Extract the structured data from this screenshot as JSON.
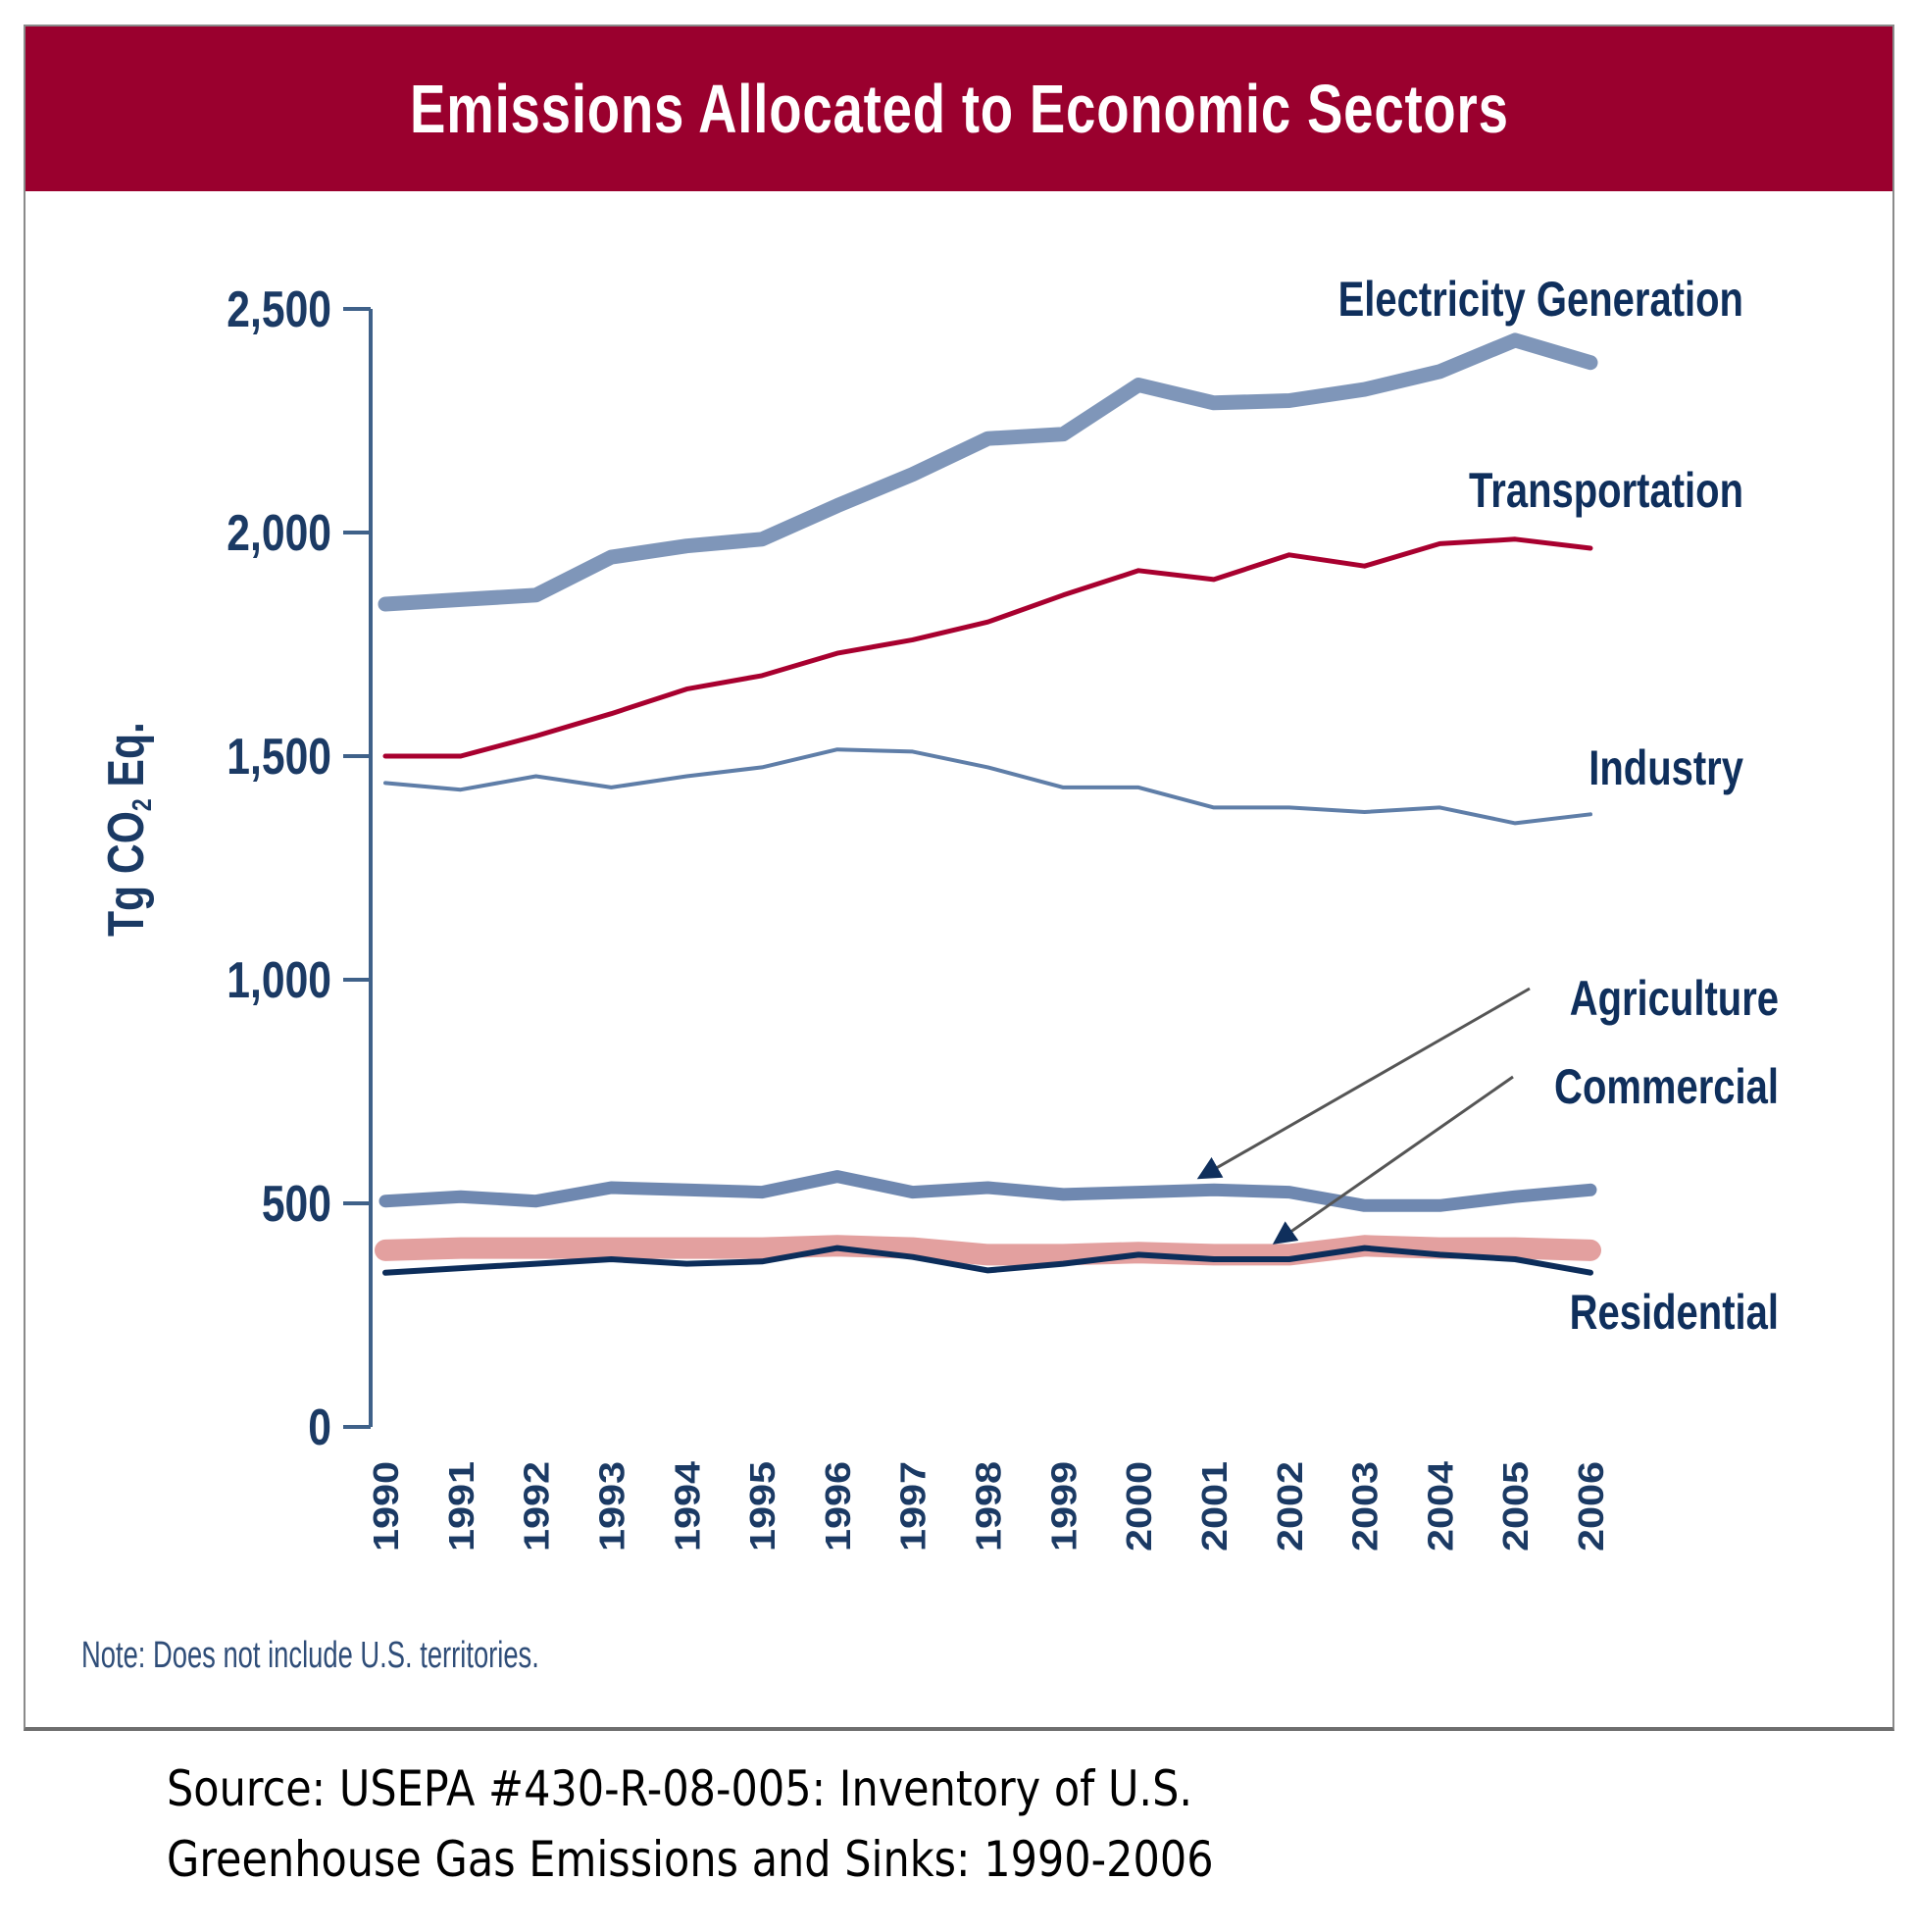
{
  "chart_data": {
    "type": "line",
    "title": "Emissions Allocated to Economic Sectors",
    "xlabel": "",
    "ylabel": "Tg CO2 Eq.",
    "ylabel_parts": {
      "main": "Tg CO",
      "sub": "2",
      "tail": " Eq."
    },
    "ylim": [
      0,
      2500
    ],
    "yticks": [
      0,
      500,
      1000,
      1500,
      2000,
      2500
    ],
    "ytick_labels": [
      "0",
      "500",
      "1,000",
      "1,500",
      "2,000",
      "2,500"
    ],
    "x": [
      1990,
      1991,
      1992,
      1993,
      1994,
      1995,
      1996,
      1997,
      1998,
      1999,
      2000,
      2001,
      2002,
      2003,
      2004,
      2005,
      2006
    ],
    "grid": false,
    "legend": "inline labels at right end of lines",
    "series": [
      {
        "name": "Electricity Generation",
        "color": "#7f96b9",
        "values": [
          1840,
          1850,
          1860,
          1945,
          1970,
          1985,
          2060,
          2130,
          2210,
          2220,
          2330,
          2290,
          2295,
          2320,
          2360,
          2430,
          2380
        ]
      },
      {
        "name": "Transportation",
        "color": "#a8002f",
        "values": [
          1500,
          1500,
          1545,
          1595,
          1650,
          1680,
          1730,
          1760,
          1800,
          1860,
          1915,
          1895,
          1950,
          1925,
          1975,
          1985,
          1965
        ]
      },
      {
        "name": "Industry",
        "color": "#5f7ea8",
        "values": [
          1440,
          1425,
          1455,
          1430,
          1455,
          1475,
          1515,
          1510,
          1475,
          1430,
          1430,
          1385,
          1385,
          1375,
          1385,
          1350,
          1370
        ]
      },
      {
        "name": "Agriculture",
        "color": "#6f88b0",
        "values": [
          505,
          515,
          505,
          535,
          530,
          525,
          560,
          525,
          535,
          520,
          525,
          530,
          525,
          495,
          495,
          515,
          530
        ]
      },
      {
        "name": "Commercial",
        "color": "#e3a09f",
        "values": [
          395,
          400,
          400,
          400,
          400,
          400,
          405,
          400,
          385,
          385,
          390,
          385,
          385,
          405,
          400,
          400,
          395
        ]
      },
      {
        "name": "Residential",
        "color": "#0c2d5a",
        "values": [
          345,
          355,
          365,
          375,
          365,
          370,
          400,
          380,
          350,
          365,
          385,
          375,
          375,
          400,
          385,
          375,
          345
        ]
      }
    ],
    "annotations": [
      {
        "text": "Agriculture",
        "arrow_to_year": 2001,
        "arrow_to_series": "Agriculture"
      },
      {
        "text": "Commercial",
        "arrow_to_year": 2002,
        "arrow_to_series": "Commercial"
      }
    ]
  },
  "banner_color": "#9a002e",
  "axis_color": "#3f6189",
  "note": "Note: Does not include U.S. territories.",
  "source_lines": [
    "Source: USEPA #430-R-08-005: Inventory of U.S.",
    "Greenhouse Gas Emissions and Sinks: 1990-2006"
  ]
}
